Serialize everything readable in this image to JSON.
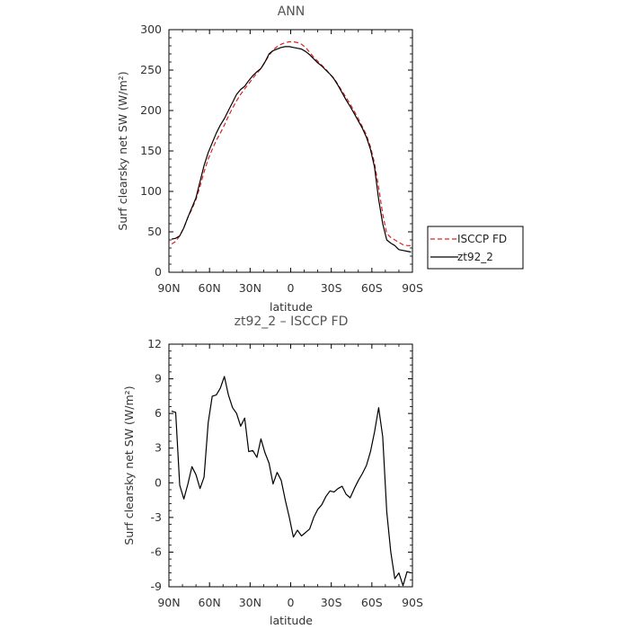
{
  "chart_data": [
    {
      "type": "line",
      "title": "ANN",
      "xlabel": "latitude",
      "ylabel": "Surf clearsky net SW (W/m²)",
      "x_tick_labels": [
        "90N",
        "60N",
        "30N",
        "0",
        "30S",
        "60S",
        "90S"
      ],
      "y_ticks": [
        0,
        50,
        100,
        150,
        200,
        250,
        300
      ],
      "xlim": [
        90,
        -90
      ],
      "ylim": [
        0,
        300
      ],
      "legend_placement": "right",
      "series": [
        {
          "name": "ISCCP FD",
          "color": "#e02020",
          "dash": "dashed",
          "x": [
            88,
            85,
            82,
            79,
            76,
            73,
            70,
            67,
            64,
            61,
            58,
            55,
            52,
            49,
            46,
            43,
            40,
            37,
            34,
            31,
            28,
            25,
            22,
            19,
            16,
            13,
            10,
            7,
            4,
            1,
            -2,
            -5,
            -8,
            -11,
            -14,
            -17,
            -20,
            -23,
            -26,
            -29,
            -32,
            -35,
            -38,
            -41,
            -44,
            -47,
            -50,
            -53,
            -56,
            -59,
            -62,
            -65,
            -68,
            -71,
            -74,
            -77,
            -80,
            -83,
            -86,
            -89
          ],
          "y": [
            35,
            38,
            45,
            55,
            68,
            78,
            90,
            106,
            124,
            140,
            152,
            163,
            172,
            182,
            193,
            203,
            212,
            220,
            227,
            233,
            240,
            246,
            252,
            260,
            268,
            275,
            279,
            282,
            284,
            285,
            285,
            284,
            282,
            278,
            272,
            266,
            261,
            256,
            251,
            245,
            240,
            232,
            224,
            216,
            208,
            199,
            190,
            180,
            170,
            155,
            135,
            105,
            72,
            48,
            43,
            40,
            37,
            34,
            33,
            33
          ]
        },
        {
          "name": "zt92_2",
          "color": "#000000",
          "dash": "solid",
          "x": [
            88,
            85,
            82,
            79,
            76,
            73,
            70,
            67,
            64,
            61,
            58,
            55,
            52,
            49,
            46,
            43,
            40,
            37,
            34,
            31,
            28,
            25,
            22,
            19,
            16,
            13,
            10,
            7,
            4,
            1,
            -2,
            -5,
            -8,
            -11,
            -14,
            -17,
            -20,
            -23,
            -26,
            -29,
            -32,
            -35,
            -38,
            -41,
            -44,
            -47,
            -50,
            -53,
            -56,
            -59,
            -62,
            -65,
            -68,
            -71,
            -74,
            -77,
            -80,
            -83,
            -86,
            -89
          ],
          "y": [
            41,
            42,
            45,
            55,
            68,
            80,
            92,
            112,
            132,
            148,
            160,
            172,
            182,
            190,
            200,
            210,
            220,
            226,
            230,
            237,
            243,
            248,
            252,
            260,
            270,
            274,
            276,
            278,
            279,
            279,
            278,
            277,
            276,
            273,
            269,
            264,
            259,
            255,
            250,
            245,
            239,
            231,
            222,
            213,
            205,
            196,
            187,
            178,
            167,
            152,
            130,
            90,
            60,
            40,
            36,
            33,
            28,
            27,
            26,
            25
          ]
        }
      ]
    },
    {
      "type": "line",
      "title": "zt92_2 – ISCCP FD",
      "xlabel": "latitude",
      "ylabel": "Surf clearsky net SW (W/m²)",
      "x_tick_labels": [
        "90N",
        "60N",
        "30N",
        "0",
        "30S",
        "60S",
        "90S"
      ],
      "y_ticks": [
        -9,
        -6,
        -3,
        0,
        3,
        6,
        9,
        12
      ],
      "xlim": [
        90,
        -90
      ],
      "ylim": [
        -9,
        12
      ],
      "series": [
        {
          "color": "#000000",
          "dash": "solid",
          "x": [
            88,
            85,
            82,
            79,
            76,
            73,
            70,
            67,
            64,
            61,
            58,
            55,
            52,
            49,
            46,
            43,
            40,
            37,
            34,
            31,
            28,
            25,
            22,
            19,
            16,
            13,
            10,
            7,
            4,
            1,
            -2,
            -5,
            -8,
            -11,
            -14,
            -17,
            -20,
            -23,
            -26,
            -29,
            -32,
            -35,
            -38,
            -41,
            -44,
            -47,
            -50,
            -53,
            -56,
            -59,
            -62,
            -65,
            -68,
            -71,
            -74,
            -77,
            -80,
            -83,
            -86,
            -89
          ],
          "y": [
            6.2,
            6.1,
            -0.2,
            -1.4,
            -0.1,
            1.4,
            0.7,
            -0.5,
            0.5,
            5.2,
            7.5,
            7.6,
            8.2,
            9.2,
            7.6,
            6.5,
            6.0,
            4.9,
            5.6,
            2.7,
            2.8,
            2.2,
            3.8,
            2.6,
            1.7,
            -0.1,
            0.9,
            0.2,
            -1.5,
            -3.0,
            -4.7,
            -4.1,
            -4.6,
            -4.3,
            -4.0,
            -3.0,
            -2.3,
            -1.9,
            -1.2,
            -0.7,
            -0.8,
            -0.5,
            -0.3,
            -1.0,
            -1.3,
            -0.5,
            0.2,
            0.8,
            1.5,
            2.7,
            4.4,
            6.5,
            4.0,
            -2.5,
            -6.0,
            -8.3,
            -7.8,
            -8.9,
            -7.7,
            -7.8
          ]
        }
      ]
    }
  ]
}
